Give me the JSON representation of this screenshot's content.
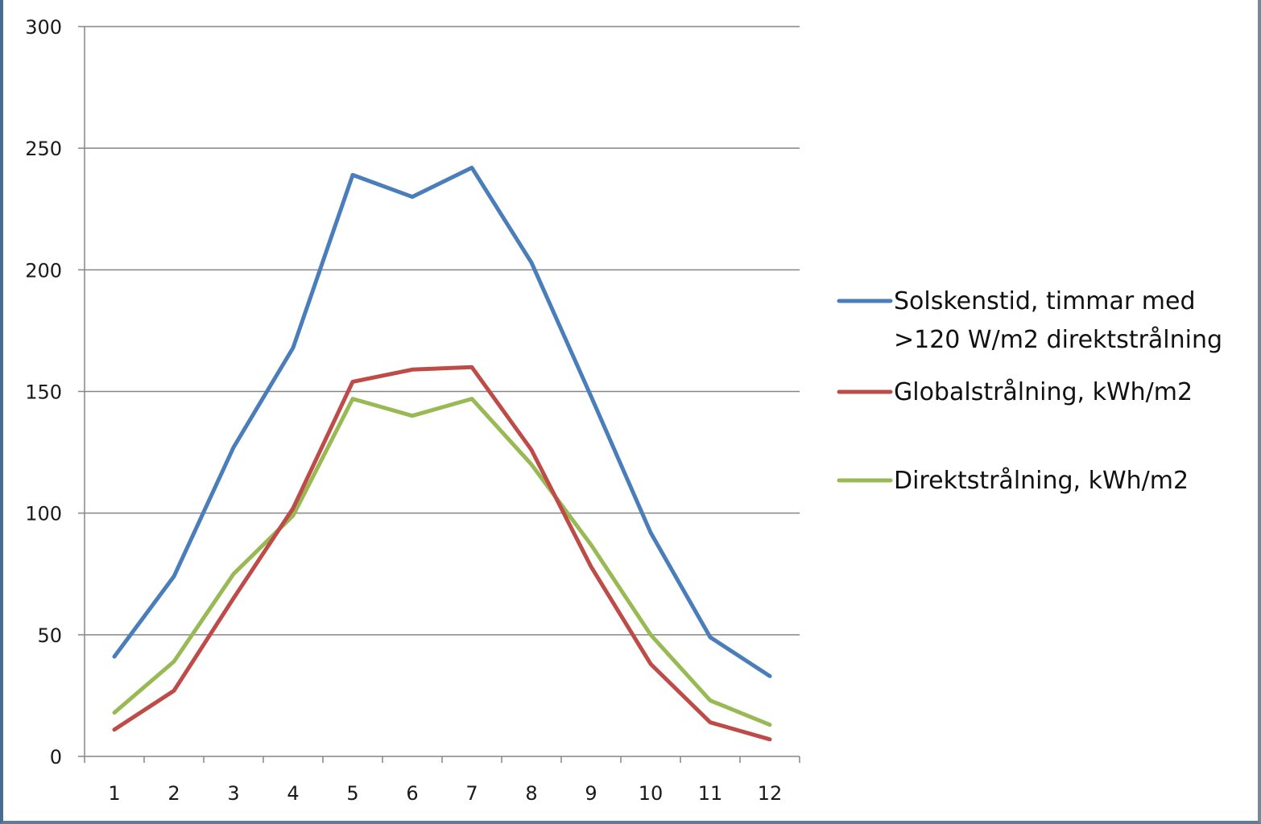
{
  "chart_data": {
    "type": "line",
    "categories": [
      "1",
      "2",
      "3",
      "4",
      "5",
      "6",
      "7",
      "8",
      "9",
      "10",
      "11",
      "12"
    ],
    "series": [
      {
        "name": "Solskenstid, timmar med >120 W/m2 direktstrålning",
        "name_lines": [
          "Solskenstid, timmar med",
          ">120 W/m2 direktstrålning"
        ],
        "color": "#4a7ebb",
        "values": [
          41,
          74,
          127,
          168,
          239,
          230,
          242,
          203,
          148,
          92,
          49,
          33
        ]
      },
      {
        "name": "Globalstrålning, kWh/m2",
        "name_lines": [
          "Globalstrålning, kWh/m2"
        ],
        "color": "#be4b48",
        "values": [
          11,
          27,
          65,
          102,
          154,
          159,
          160,
          126,
          78,
          38,
          14,
          7
        ]
      },
      {
        "name": "Direktstrålning, kWh/m2",
        "name_lines": [
          "Direktstrålning, kWh/m2"
        ],
        "color": "#98b954",
        "values": [
          18,
          39,
          75,
          99,
          147,
          140,
          147,
          120,
          87,
          50,
          23,
          13
        ]
      }
    ],
    "yticks": [
      "0",
      "50",
      "100",
      "150",
      "200",
      "250",
      "300"
    ],
    "ylim": [
      0,
      300
    ],
    "grid": true,
    "legend": "right"
  }
}
